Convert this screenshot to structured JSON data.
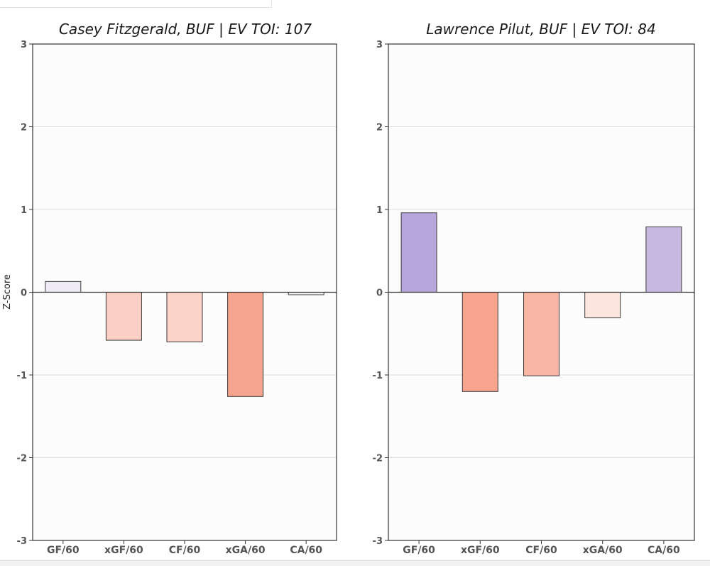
{
  "chart_data": [
    {
      "type": "bar",
      "title": "Casey Fitzgerald, BUF  |  EV TOI: 107",
      "categories": [
        "GF/60",
        "xGF/60",
        "CF/60",
        "xGA/60",
        "CA/60"
      ],
      "values": [
        0.13,
        -0.58,
        -0.6,
        -1.26,
        -0.03
      ],
      "colors": [
        "#eeebf6",
        "#fbd0c4",
        "#fcd3c7",
        "#f5a58f",
        "#f7f6f9"
      ],
      "ylabel": "Z-Score",
      "xlabel": "",
      "ylim": [
        -3,
        3
      ],
      "yticks": [
        "-3",
        "-2",
        "-1",
        "0",
        "1",
        "2",
        "3"
      ],
      "grid": true
    },
    {
      "type": "bar",
      "title": "Lawrence Pilut, BUF  |  EV TOI: 84",
      "categories": [
        "GF/60",
        "xGF/60",
        "CF/60",
        "xGA/60",
        "CA/60"
      ],
      "values": [
        0.96,
        -1.2,
        -1.01,
        -0.31,
        0.79
      ],
      "colors": [
        "#b7a6dc",
        "#f7a58f",
        "#f8b5a3",
        "#fde6df",
        "#c7b8e0"
      ],
      "ylabel": "",
      "xlabel": "",
      "ylim": [
        -3,
        3
      ],
      "yticks": [
        "-3",
        "-2",
        "-1",
        "0",
        "1",
        "2",
        "3"
      ],
      "grid": true
    }
  ]
}
